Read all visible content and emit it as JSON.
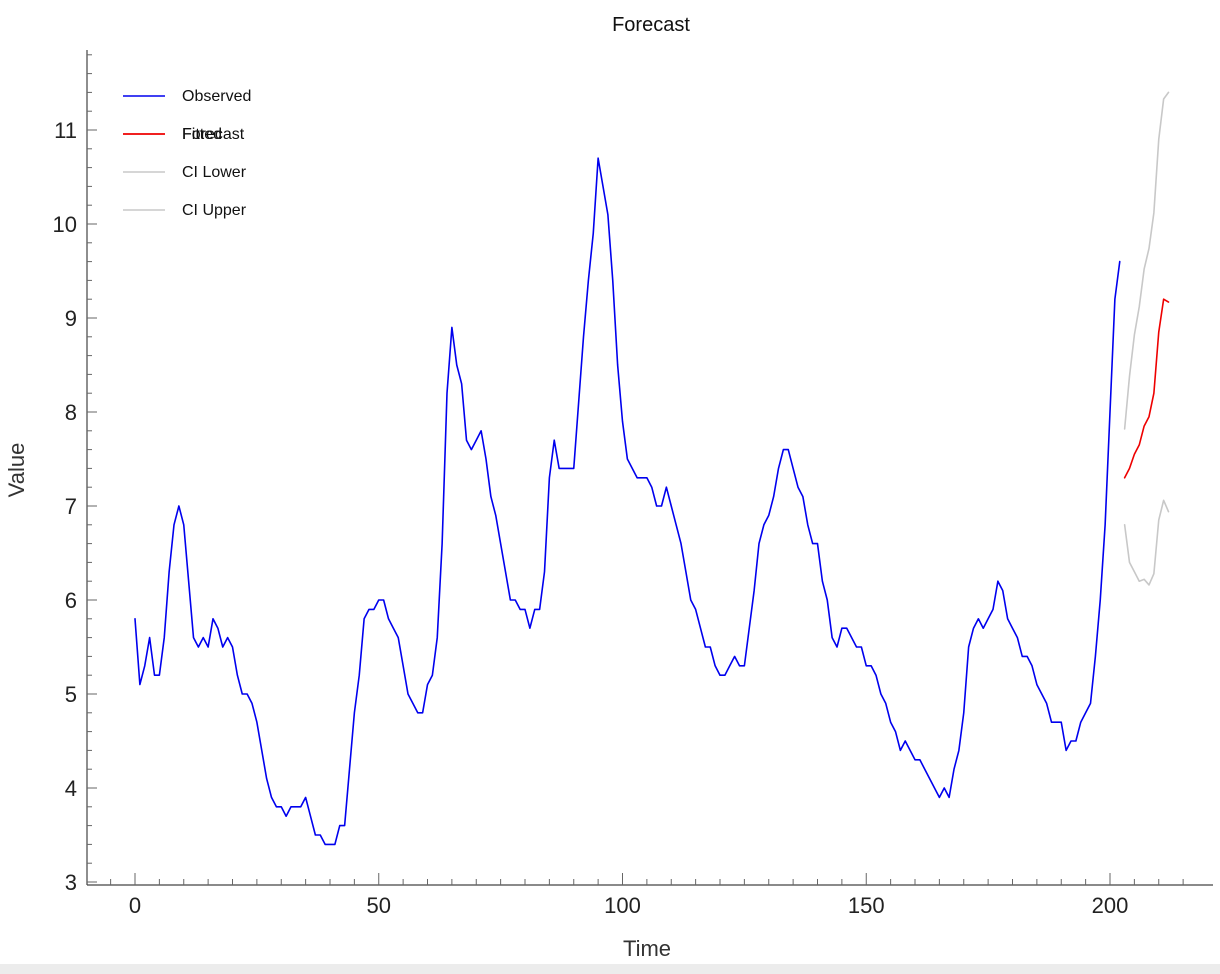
{
  "chart_data": {
    "type": "line",
    "title": "Forecast",
    "xlabel": "Time",
    "ylabel": "Value",
    "xlim": [
      -10,
      220
    ],
    "ylim": [
      3,
      11.8
    ],
    "x_ticks": [
      0,
      50,
      100,
      150,
      200
    ],
    "y_ticks": [
      3,
      4,
      5,
      6,
      7,
      8,
      9,
      10,
      11
    ],
    "legend_position": "top-left",
    "legend": [
      {
        "label": "Observed",
        "color": "#0000ee"
      },
      {
        "label": "Fitted",
        "color": "#ee0000"
      },
      {
        "label": "Forecast",
        "color": "#ee0000"
      },
      {
        "label": "CI Lower",
        "color": "#c8c8c8"
      },
      {
        "label": "CI Upper",
        "color": "#c8c8c8"
      }
    ],
    "series": [
      {
        "name": "Observed",
        "color": "#0000ee",
        "x_start": 0,
        "values": [
          5.8,
          5.1,
          5.3,
          5.6,
          5.2,
          5.2,
          5.6,
          6.3,
          6.8,
          7.0,
          6.8,
          6.2,
          5.6,
          5.5,
          5.6,
          5.5,
          5.8,
          5.7,
          5.5,
          5.6,
          5.5,
          5.2,
          5.0,
          5.0,
          4.9,
          4.7,
          4.4,
          4.1,
          3.9,
          3.8,
          3.8,
          3.7,
          3.8,
          3.8,
          3.8,
          3.9,
          3.7,
          3.5,
          3.5,
          3.4,
          3.4,
          3.4,
          3.6,
          3.6,
          4.2,
          4.8,
          5.2,
          5.8,
          5.9,
          5.9,
          6.0,
          6.0,
          5.8,
          5.7,
          5.6,
          5.3,
          5.0,
          4.9,
          4.8,
          4.8,
          5.1,
          5.2,
          5.6,
          6.6,
          8.2,
          8.9,
          8.5,
          8.3,
          7.7,
          7.6,
          7.7,
          7.8,
          7.5,
          7.1,
          6.9,
          6.6,
          6.3,
          6.0,
          6.0,
          5.9,
          5.9,
          5.7,
          5.9,
          5.9,
          6.3,
          7.3,
          7.7,
          7.4,
          7.4,
          7.4,
          7.4,
          8.1,
          8.8,
          9.4,
          9.9,
          10.7,
          10.4,
          10.1,
          9.4,
          8.5,
          7.9,
          7.5,
          7.4,
          7.3,
          7.3,
          7.3,
          7.2,
          7.0,
          7.0,
          7.2,
          7.0,
          6.8,
          6.6,
          6.3,
          6.0,
          5.9,
          5.7,
          5.5,
          5.5,
          5.3,
          5.2,
          5.2,
          5.3,
          5.4,
          5.3,
          5.3,
          5.7,
          6.1,
          6.6,
          6.8,
          6.9,
          7.1,
          7.4,
          7.6,
          7.6,
          7.4,
          7.2,
          7.1,
          6.8,
          6.6,
          6.6,
          6.2,
          6.0,
          5.6,
          5.5,
          5.7,
          5.7,
          5.6,
          5.5,
          5.5,
          5.3,
          5.3,
          5.2,
          5.0,
          4.9,
          4.7,
          4.6,
          4.4,
          4.5,
          4.4,
          4.3,
          4.3,
          4.2,
          4.1,
          4.0,
          3.9,
          4.0,
          3.9,
          4.2,
          4.4,
          4.8,
          5.5,
          5.7,
          5.8,
          5.7,
          5.8,
          5.9,
          6.2,
          6.1,
          5.8,
          5.7,
          5.6,
          5.4,
          5.4,
          5.3,
          5.1,
          5.0,
          4.9,
          4.7,
          4.7,
          4.7,
          4.4,
          4.5,
          4.5,
          4.7,
          4.8,
          4.9,
          5.4,
          6.0,
          6.8,
          8.0,
          9.2,
          9.6
        ]
      },
      {
        "name": "Forecast",
        "color": "#ee0000",
        "x_start": 203,
        "values": [
          7.3,
          7.4,
          7.55,
          7.65,
          7.85,
          7.95,
          8.2,
          8.85,
          9.2,
          9.17
        ]
      },
      {
        "name": "CI Lower",
        "color": "#c8c8c8",
        "x_start": 203,
        "values": [
          6.8,
          6.4,
          6.3,
          6.2,
          6.22,
          6.16,
          6.28,
          6.85,
          7.06,
          6.94
        ]
      },
      {
        "name": "CI Upper",
        "color": "#c8c8c8",
        "x_start": 203,
        "values": [
          7.82,
          8.38,
          8.82,
          9.12,
          9.52,
          9.74,
          10.12,
          10.9,
          11.33,
          11.4
        ]
      }
    ]
  }
}
